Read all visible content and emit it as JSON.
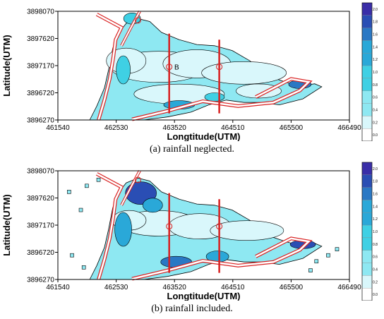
{
  "chart_data": [
    {
      "type": "heatmap",
      "caption": "(a) rainfall neglected.",
      "xlabel": "Longtitude(UTM)",
      "ylabel": "Latitude(UTM)",
      "x_ticks": [
        "461540",
        "462530",
        "463520",
        "464510",
        "465500",
        "466490"
      ],
      "y_ticks": [
        "3898070",
        "3897620",
        "3897170",
        "3896720",
        "3896270"
      ],
      "xlim": [
        461540,
        466490
      ],
      "ylim": [
        3896270,
        3898070
      ],
      "colorbar": [
        "2.0",
        "1.8",
        "1.6",
        "1.4",
        "1.2",
        "1.0",
        "0.8",
        "0.6",
        "0.4",
        "0.2",
        "0.0"
      ],
      "colorbar_unit": "",
      "markers": [
        "B"
      ]
    },
    {
      "type": "heatmap",
      "caption": "(b) rainfall included.",
      "xlabel": "Longtitude(UTM)",
      "ylabel": "Latitude(UTM)",
      "x_ticks": [
        "461540",
        "462530",
        "463520",
        "464510",
        "465500",
        "466490"
      ],
      "y_ticks": [
        "3898070",
        "3897620",
        "3897170",
        "3896720",
        "3896270"
      ],
      "xlim": [
        461540,
        466490
      ],
      "ylim": [
        3896270,
        3898070
      ],
      "colorbar": [
        "2.0",
        "1.8",
        "1.6",
        "1.4",
        "1.2",
        "1.0",
        "0.8",
        "0.6",
        "0.4",
        "0.2",
        "0.0"
      ],
      "colorbar_unit": "",
      "markers": []
    }
  ],
  "colors": {
    "c0": "#ffffff",
    "c1": "#d9f7fb",
    "c2": "#8ee8f2",
    "c3": "#3fd0e4",
    "c4": "#2aa8d8",
    "c5": "#2a78c4",
    "c6": "#2a4eb4",
    "c7": "#3a2ea8",
    "river": "#d92020",
    "contour": "#000000"
  }
}
